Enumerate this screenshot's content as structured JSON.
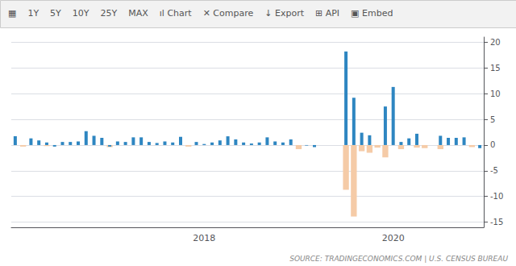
{
  "chart_data": {
    "type": "bar",
    "annotations": [
      "▦",
      "1Y",
      "5Y",
      "10Y",
      "25Y",
      "MAX",
      "ıl Chart",
      "✕ Compare",
      "↓ Export",
      "⊞ API",
      "▣ Embed"
    ],
    "source": "SOURCE: TRADINGECONOMICS.COM | U.S. CENSUS BUREAU",
    "categories": [
      null,
      null,
      null,
      null,
      null,
      null,
      null,
      null,
      null,
      null,
      null,
      null,
      null,
      null,
      null,
      null,
      null,
      null,
      null,
      null,
      null,
      null,
      null,
      null,
      "2018",
      null,
      null,
      null,
      null,
      null,
      null,
      null,
      null,
      null,
      null,
      null,
      null,
      null,
      null,
      null,
      null,
      null,
      null,
      null,
      null,
      null,
      null,
      null,
      "2020",
      null,
      null,
      null,
      null,
      null,
      null,
      null,
      null,
      null,
      null,
      null
    ],
    "series": [
      {
        "color": "#f5cba7",
        "values": [
          0.0,
          -0.3,
          0.0,
          0.0,
          -0.2,
          0.0,
          0.0,
          0.0,
          0.0,
          0.0,
          0.0,
          0.0,
          -0.4,
          0.0,
          0.0,
          0.0,
          0.0,
          0.0,
          0.0,
          0.0,
          0.0,
          0.0,
          -0.3,
          0.0,
          0.0,
          0.0,
          0.0,
          0.0,
          0.0,
          0.0,
          0.0,
          0.0,
          0.0,
          0.0,
          0.0,
          0.0,
          -0.8,
          0.0,
          0.0,
          0.0,
          0.0,
          0.0,
          -8.7,
          -13.9,
          -1.2,
          -1.5,
          -0.5,
          -2.4,
          0.0,
          -0.8,
          0.0,
          -0.5,
          -0.6,
          0.0,
          -0.8,
          0.0,
          0.0,
          0.0,
          -0.4,
          0.0
        ]
      },
      {
        "color": "#2e86c1",
        "values": [
          1.7,
          0.0,
          1.3,
          0.9,
          0.5,
          -0.3,
          0.6,
          0.6,
          0.7,
          2.7,
          1.8,
          1.4,
          -0.3,
          0.7,
          0.6,
          1.5,
          1.5,
          0.6,
          0.4,
          0.7,
          0.5,
          1.6,
          0.0,
          0.6,
          0.2,
          0.5,
          0.9,
          1.7,
          1.1,
          0.5,
          0.3,
          0.5,
          1.5,
          0.7,
          0.5,
          1.1,
          0.0,
          -0.1,
          -0.4,
          0.0,
          0.0,
          0.0,
          18.2,
          9.2,
          2.4,
          1.9,
          0.0,
          7.5,
          11.3,
          0.6,
          1.3,
          2.2,
          0.0,
          0.0,
          1.8,
          1.4,
          1.4,
          1.5,
          0.0,
          -0.6
        ]
      }
    ],
    "ylim": [
      -16,
      21
    ],
    "yticks": [
      -15,
      -10,
      -5,
      0,
      5,
      10,
      15,
      20
    ],
    "grid": true
  }
}
